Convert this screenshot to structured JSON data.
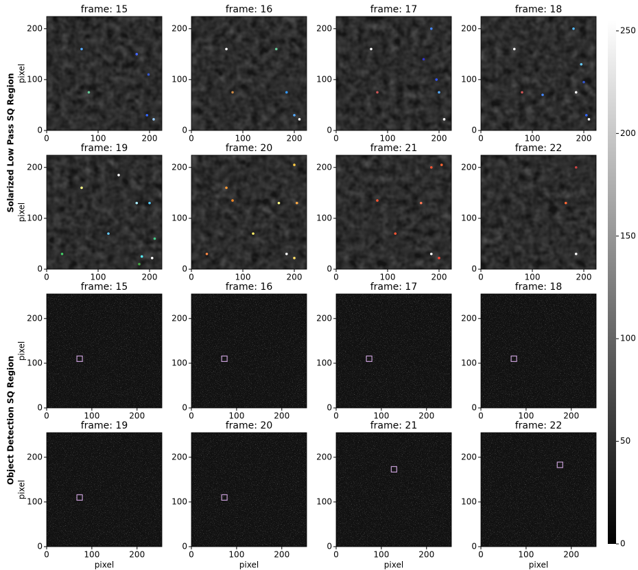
{
  "row_labels": [
    "Solarized Low Pass SQ Region",
    "Object Detection SQ Region"
  ],
  "chart_data": [
    {
      "type": "image",
      "title": "frame: 15",
      "ylabel": "pixel",
      "xlim": [
        0,
        224
      ],
      "ylim": [
        0,
        224
      ],
      "xticks": [
        0,
        100,
        200
      ],
      "yticks": [
        0,
        100,
        200
      ],
      "spots": {
        "x": [
          68,
          82,
          175,
          195,
          208,
          198
        ],
        "y": [
          160,
          75,
          150,
          30,
          22,
          110
        ],
        "color": [
          "#5af",
          "#6c9",
          "#46f",
          "#36f",
          "#9cf",
          "#35c"
        ]
      }
    },
    {
      "type": "image",
      "title": "frame: 16",
      "xlim": [
        0,
        224
      ],
      "ylim": [
        0,
        224
      ],
      "xticks": [
        0,
        100,
        200
      ],
      "yticks": [
        0,
        100,
        200
      ],
      "spots": {
        "x": [
          68,
          80,
          165,
          185,
          200,
          210
        ],
        "y": [
          160,
          75,
          160,
          75,
          30,
          22
        ],
        "color": [
          "#fff",
          "#c84",
          "#6c9",
          "#39f",
          "#5af",
          "#fff"
        ]
      }
    },
    {
      "type": "image",
      "title": "frame: 17",
      "xlim": [
        0,
        224
      ],
      "ylim": [
        0,
        224
      ],
      "xticks": [
        0,
        100,
        200
      ],
      "yticks": [
        0,
        100,
        200
      ],
      "spots": {
        "x": [
          68,
          80,
          185,
          195,
          200,
          210,
          170
        ],
        "y": [
          160,
          75,
          200,
          100,
          75,
          22,
          140
        ],
        "color": [
          "#fff",
          "#c55",
          "#48f",
          "#35f",
          "#5af",
          "#fff",
          "#33c"
        ]
      }
    },
    {
      "type": "image",
      "title": "frame: 18",
      "ylabel": "",
      "xlim": [
        0,
        224
      ],
      "ylim": [
        0,
        224
      ],
      "xticks": [
        0,
        100,
        200
      ],
      "yticks": [
        0,
        100,
        200
      ],
      "spots": {
        "x": [
          65,
          80,
          180,
          195,
          185,
          205,
          200,
          120,
          210
        ],
        "y": [
          160,
          75,
          200,
          130,
          75,
          30,
          95,
          70,
          22
        ],
        "color": [
          "#fff",
          "#c55",
          "#5bf",
          "#6cf",
          "#fff",
          "#36f",
          "#35c",
          "#48f",
          "#fff"
        ]
      }
    },
    {
      "type": "image",
      "title": "frame: 19",
      "ylabel": "pixel",
      "xlim": [
        0,
        224
      ],
      "ylim": [
        0,
        224
      ],
      "xticks": [
        0,
        100,
        200
      ],
      "yticks": [
        0,
        100,
        200
      ],
      "spots": {
        "x": [
          68,
          140,
          175,
          200,
          185,
          205,
          210,
          120,
          30,
          180
        ],
        "y": [
          160,
          185,
          130,
          130,
          25,
          22,
          60,
          70,
          30,
          10
        ],
        "color": [
          "#ff8",
          "#fff",
          "#aef",
          "#5cf",
          "#5ef",
          "#fff",
          "#4c8",
          "#6cf",
          "#4c6",
          "#4a4"
        ]
      }
    },
    {
      "type": "image",
      "title": "frame: 20",
      "xlim": [
        0,
        224
      ],
      "ylim": [
        0,
        224
      ],
      "xticks": [
        0,
        100,
        200
      ],
      "yticks": [
        0,
        100,
        200
      ],
      "spots": {
        "x": [
          68,
          200,
          170,
          205,
          185,
          200,
          120,
          30,
          80
        ],
        "y": [
          160,
          205,
          130,
          130,
          30,
          22,
          70,
          30,
          135
        ],
        "color": [
          "#f93",
          "#fc4",
          "#ff8",
          "#fa4",
          "#fff",
          "#fd6",
          "#fe6",
          "#f84",
          "#f82"
        ]
      }
    },
    {
      "type": "image",
      "title": "frame: 21",
      "xlim": [
        0,
        224
      ],
      "ylim": [
        0,
        224
      ],
      "xticks": [
        0,
        100,
        200
      ],
      "yticks": [
        0,
        100,
        200
      ],
      "spots": {
        "x": [
          185,
          205,
          165,
          185,
          200,
          115,
          80
        ],
        "y": [
          200,
          205,
          130,
          30,
          22,
          70,
          135
        ],
        "color": [
          "#f53",
          "#f63",
          "#f75",
          "#fff",
          "#f43",
          "#f53",
          "#f53"
        ]
      }
    },
    {
      "type": "image",
      "title": "frame: 22",
      "xlim": [
        0,
        224
      ],
      "ylim": [
        0,
        224
      ],
      "xticks": [
        0,
        100,
        200
      ],
      "yticks": [
        0,
        100,
        200
      ],
      "spots": {
        "x": [
          165,
          185,
          185
        ],
        "y": [
          130,
          30,
          200
        ],
        "color": [
          "#f63",
          "#fff",
          "#c44"
        ]
      }
    },
    {
      "type": "image",
      "title": "frame: 15",
      "ylabel": "pixel",
      "xlim": [
        0,
        255
      ],
      "ylim": [
        0,
        255
      ],
      "xticks": [
        0,
        100,
        200
      ],
      "yticks": [
        0,
        100,
        200
      ],
      "box": {
        "x": 73,
        "y": 110
      }
    },
    {
      "type": "image",
      "title": "frame: 16",
      "xlim": [
        0,
        255
      ],
      "ylim": [
        0,
        255
      ],
      "xticks": [
        0,
        100,
        200
      ],
      "yticks": [
        0,
        100,
        200
      ],
      "box": {
        "x": 73,
        "y": 110
      }
    },
    {
      "type": "image",
      "title": "frame: 17",
      "xlim": [
        0,
        255
      ],
      "ylim": [
        0,
        255
      ],
      "xticks": [
        0,
        100,
        200
      ],
      "yticks": [
        0,
        100,
        200
      ],
      "box": {
        "x": 73,
        "y": 110
      }
    },
    {
      "type": "image",
      "title": "frame: 18",
      "xlim": [
        0,
        255
      ],
      "ylim": [
        0,
        255
      ],
      "xticks": [
        0,
        100,
        200
      ],
      "yticks": [
        0,
        100,
        200
      ],
      "box": {
        "x": 73,
        "y": 110
      }
    },
    {
      "type": "image",
      "title": "frame: 19",
      "ylabel": "pixel",
      "xlabel": "pixel",
      "xlim": [
        0,
        255
      ],
      "ylim": [
        0,
        255
      ],
      "xticks": [
        0,
        100,
        200
      ],
      "yticks": [
        0,
        100,
        200
      ],
      "box": {
        "x": 73,
        "y": 110
      }
    },
    {
      "type": "image",
      "title": "frame: 20",
      "xlabel": "pixel",
      "xlim": [
        0,
        255
      ],
      "ylim": [
        0,
        255
      ],
      "xticks": [
        0,
        100,
        200
      ],
      "yticks": [
        0,
        100,
        200
      ],
      "box": {
        "x": 73,
        "y": 110
      }
    },
    {
      "type": "image",
      "title": "frame: 21",
      "xlabel": "pixel",
      "xlim": [
        0,
        255
      ],
      "ylim": [
        0,
        255
      ],
      "xticks": [
        0,
        100,
        200
      ],
      "yticks": [
        0,
        100,
        200
      ],
      "box": {
        "x": 128,
        "y": 173
      }
    },
    {
      "type": "image",
      "title": "frame: 22",
      "xlabel": "pixel",
      "xlim": [
        0,
        255
      ],
      "ylim": [
        0,
        255
      ],
      "xticks": [
        0,
        100,
        200
      ],
      "yticks": [
        0,
        100,
        200
      ],
      "box": {
        "x": 175,
        "y": 183
      }
    },
    {
      "type": "colorbar",
      "ylim": [
        0,
        255
      ],
      "yticks": [
        0,
        50,
        100,
        150,
        200,
        250
      ]
    }
  ]
}
